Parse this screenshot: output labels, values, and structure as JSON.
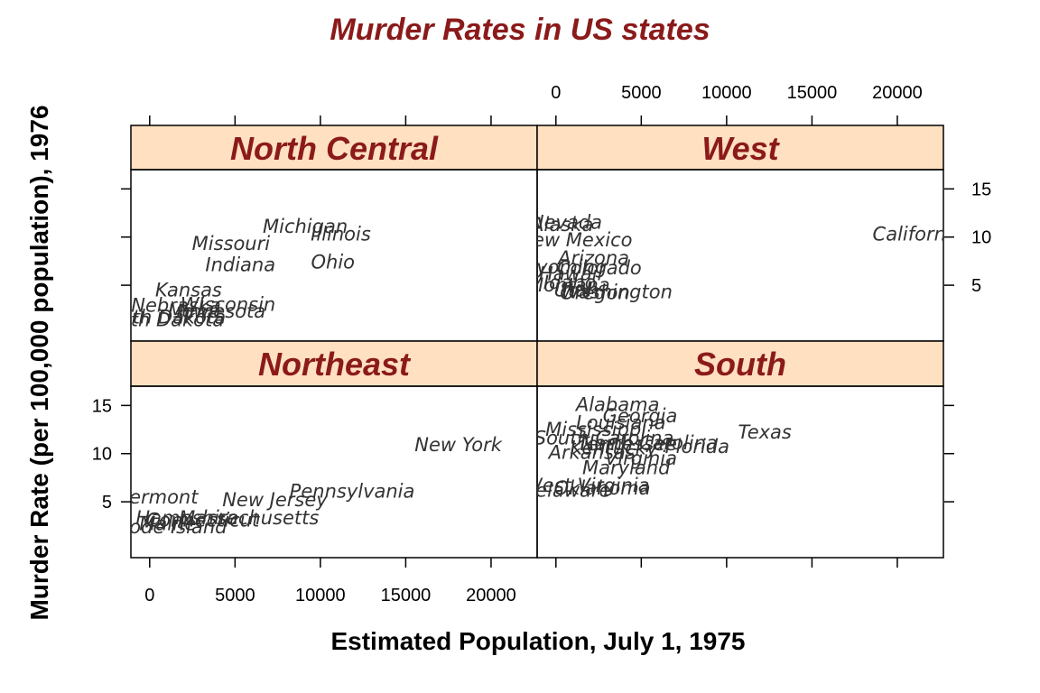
{
  "chart_data": {
    "type": "scatter",
    "title": "Murder Rates in US states",
    "xlabel": "Estimated Population, July 1, 1975",
    "ylabel": "Murder Rate (per 100,000 population), 1976",
    "xlim": [
      -1100,
      22700
    ],
    "ylim": [
      -0.8,
      17.0
    ],
    "x_ticks": [
      0,
      5000,
      10000,
      15000,
      20000
    ],
    "y_ticks": [
      5,
      10,
      15
    ],
    "layout": "2x2 panels",
    "grid": false,
    "colors": {
      "title": "#8b1a1a",
      "strip_fill": "#ffe0c0",
      "strip_text": "#8b1a1a",
      "point_text": "#333333"
    },
    "panels": [
      {
        "name": "North Central",
        "labels": [
          {
            "text": "Michigan",
            "x": 9111,
            "y": 11.1
          },
          {
            "text": "Illinois",
            "x": 11197,
            "y": 10.3
          },
          {
            "text": "Missouri",
            "x": 4763,
            "y": 9.3
          },
          {
            "text": "Ohio",
            "x": 10735,
            "y": 7.4
          },
          {
            "text": "Indiana",
            "x": 5313,
            "y": 7.1
          },
          {
            "text": "Kansas",
            "x": 2280,
            "y": 4.5
          },
          {
            "text": "Wisconsin",
            "x": 4589,
            "y": 3.0
          },
          {
            "text": "Nebraska",
            "x": 1544,
            "y": 2.9
          },
          {
            "text": "Minnesota",
            "x": 3921,
            "y": 2.3
          },
          {
            "text": "Iowa",
            "x": 2861,
            "y": 2.3
          },
          {
            "text": "South Dakota",
            "x": 681,
            "y": 1.7
          },
          {
            "text": "North Dakota",
            "x": 637,
            "y": 1.4
          }
        ]
      },
      {
        "name": "West",
        "labels": [
          {
            "text": "California",
            "x": 21198,
            "y": 10.3
          },
          {
            "text": "Nevada",
            "x": 590,
            "y": 11.5
          },
          {
            "text": "Alaska",
            "x": 365,
            "y": 11.3
          },
          {
            "text": "New Mexico",
            "x": 1144,
            "y": 9.7
          },
          {
            "text": "Arizona",
            "x": 2212,
            "y": 7.8
          },
          {
            "text": "Colorado",
            "x": 2541,
            "y": 6.8
          },
          {
            "text": "Wyoming",
            "x": 376,
            "y": 6.9
          },
          {
            "text": "Hawaii",
            "x": 868,
            "y": 6.2
          },
          {
            "text": "Montana",
            "x": 746,
            "y": 5.0
          },
          {
            "text": "Utah",
            "x": 1203,
            "y": 4.5
          },
          {
            "text": "Washington",
            "x": 3559,
            "y": 4.3
          },
          {
            "text": "Idaho",
            "x": 813,
            "y": 5.3
          },
          {
            "text": "Oregon",
            "x": 2284,
            "y": 4.2
          }
        ]
      },
      {
        "name": "Northeast",
        "labels": [
          {
            "text": "New York",
            "x": 18076,
            "y": 10.9
          },
          {
            "text": "Pennsylvania",
            "x": 11860,
            "y": 6.1
          },
          {
            "text": "New Jersey",
            "x": 7333,
            "y": 5.2
          },
          {
            "text": "Vermont",
            "x": 472,
            "y": 5.5
          },
          {
            "text": "Massachusetts",
            "x": 5814,
            "y": 3.3
          },
          {
            "text": "Connecticut",
            "x": 3100,
            "y": 3.1
          },
          {
            "text": "New Hampshire",
            "x": 812,
            "y": 3.3
          },
          {
            "text": "Maine",
            "x": 1058,
            "y": 2.7
          },
          {
            "text": "Rhode Island",
            "x": 931,
            "y": 2.4
          }
        ]
      },
      {
        "name": "South",
        "labels": [
          {
            "text": "Alabama",
            "x": 3615,
            "y": 15.1
          },
          {
            "text": "Georgia",
            "x": 4931,
            "y": 13.9
          },
          {
            "text": "Louisiana",
            "x": 3806,
            "y": 13.2
          },
          {
            "text": "Mississippi",
            "x": 2341,
            "y": 12.5
          },
          {
            "text": "Texas",
            "x": 12237,
            "y": 12.2
          },
          {
            "text": "South Carolina",
            "x": 2816,
            "y": 11.6
          },
          {
            "text": "Florida",
            "x": 8277,
            "y": 10.7
          },
          {
            "text": "North Carolina",
            "x": 5441,
            "y": 11.1
          },
          {
            "text": "Tennessee",
            "x": 4173,
            "y": 11.0
          },
          {
            "text": "Kentucky",
            "x": 3387,
            "y": 10.6
          },
          {
            "text": "Arkansas",
            "x": 2110,
            "y": 10.1
          },
          {
            "text": "Virginia",
            "x": 4981,
            "y": 9.5
          },
          {
            "text": "Maryland",
            "x": 4122,
            "y": 8.5
          },
          {
            "text": "Oklahoma",
            "x": 2715,
            "y": 6.4
          },
          {
            "text": "West Virginia",
            "x": 1799,
            "y": 6.7
          },
          {
            "text": "Delaware",
            "x": 579,
            "y": 6.2
          }
        ]
      }
    ]
  }
}
